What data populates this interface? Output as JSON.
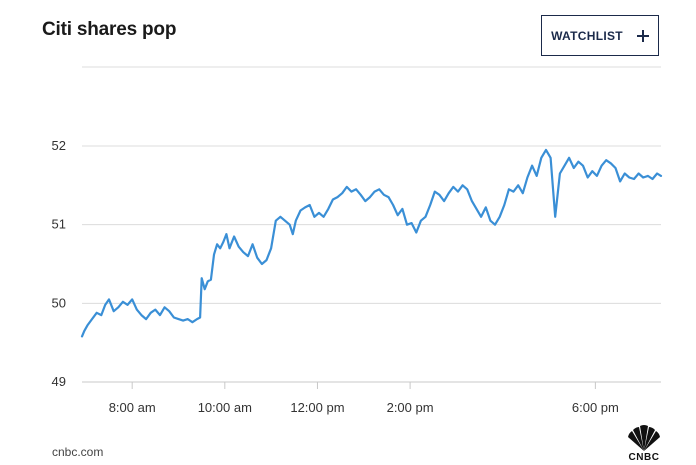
{
  "header": {
    "title": "Citi shares pop",
    "watchlist_label": "WATCHLIST",
    "watchlist_icon": "plus-icon"
  },
  "footer": {
    "source": "cnbc.com",
    "logo_text": "CNBC",
    "logo_icon": "peacock-icon"
  },
  "colors": {
    "line": "#3a8fd6",
    "grid": "#dcdcdc",
    "axis_text": "#333333",
    "button_border": "#1b2a4a"
  },
  "chart_data": {
    "type": "line",
    "title": "Citi shares pop",
    "xlabel": "",
    "ylabel": "",
    "ylim": [
      49,
      52
    ],
    "xlim": [
      "6:55 am",
      "7:25 pm"
    ],
    "yticks": [
      "49",
      "50",
      "51",
      "52"
    ],
    "xticks": [
      "8:00 am",
      "10:00 am",
      "12:00 pm",
      "2:00 pm",
      "6:00 pm"
    ],
    "grid": true,
    "series": [
      {
        "values": [
          [
            "6:55 am",
            49.58
          ],
          [
            "6:58 am",
            49.65
          ],
          [
            "7:02 am",
            49.72
          ],
          [
            "7:08 am",
            49.8
          ],
          [
            "7:14 am",
            49.88
          ],
          [
            "7:20 am",
            49.85
          ],
          [
            "7:25 am",
            49.98
          ],
          [
            "7:30 am",
            50.05
          ],
          [
            "7:36 am",
            49.9
          ],
          [
            "7:42 am",
            49.95
          ],
          [
            "7:48 am",
            50.02
          ],
          [
            "7:54 am",
            49.98
          ],
          [
            "8:00 am",
            50.05
          ],
          [
            "8:06 am",
            49.92
          ],
          [
            "8:12 am",
            49.85
          ],
          [
            "8:18 am",
            49.8
          ],
          [
            "8:24 am",
            49.88
          ],
          [
            "8:30 am",
            49.92
          ],
          [
            "8:36 am",
            49.85
          ],
          [
            "8:42 am",
            49.95
          ],
          [
            "8:48 am",
            49.9
          ],
          [
            "8:54 am",
            49.82
          ],
          [
            "9:00 am",
            49.8
          ],
          [
            "9:06 am",
            49.78
          ],
          [
            "9:12 am",
            49.8
          ],
          [
            "9:18 am",
            49.76
          ],
          [
            "9:24 am",
            49.8
          ],
          [
            "9:28 am",
            49.82
          ],
          [
            "9:30 am",
            50.32
          ],
          [
            "9:34 am",
            50.18
          ],
          [
            "9:38 am",
            50.28
          ],
          [
            "9:42 am",
            50.3
          ],
          [
            "9:46 am",
            50.62
          ],
          [
            "9:50 am",
            50.75
          ],
          [
            "9:54 am",
            50.7
          ],
          [
            "9:58 am",
            50.78
          ],
          [
            "10:02 am",
            50.88
          ],
          [
            "10:06 am",
            50.7
          ],
          [
            "10:12 am",
            50.85
          ],
          [
            "10:18 am",
            50.72
          ],
          [
            "10:24 am",
            50.65
          ],
          [
            "10:30 am",
            50.6
          ],
          [
            "10:36 am",
            50.75
          ],
          [
            "10:42 am",
            50.58
          ],
          [
            "10:48 am",
            50.5
          ],
          [
            "10:54 am",
            50.55
          ],
          [
            "11:00 am",
            50.7
          ],
          [
            "11:06 am",
            51.05
          ],
          [
            "11:12 am",
            51.1
          ],
          [
            "11:18 am",
            51.05
          ],
          [
            "11:24 am",
            51.0
          ],
          [
            "11:28 am",
            50.88
          ],
          [
            "11:32 am",
            51.05
          ],
          [
            "11:38 am",
            51.18
          ],
          [
            "11:44 am",
            51.22
          ],
          [
            "11:50 am",
            51.25
          ],
          [
            "11:56 am",
            51.1
          ],
          [
            "12:02 pm",
            51.15
          ],
          [
            "12:08 pm",
            51.1
          ],
          [
            "12:14 pm",
            51.2
          ],
          [
            "12:20 pm",
            51.32
          ],
          [
            "12:26 pm",
            51.35
          ],
          [
            "12:32 pm",
            51.4
          ],
          [
            "12:38 pm",
            51.48
          ],
          [
            "12:44 pm",
            51.42
          ],
          [
            "12:50 pm",
            51.45
          ],
          [
            "12:56 pm",
            51.38
          ],
          [
            "1:02 pm",
            51.3
          ],
          [
            "1:08 pm",
            51.35
          ],
          [
            "1:14 pm",
            51.42
          ],
          [
            "1:20 pm",
            51.45
          ],
          [
            "1:26 pm",
            51.38
          ],
          [
            "1:32 pm",
            51.35
          ],
          [
            "1:38 pm",
            51.25
          ],
          [
            "1:44 pm",
            51.12
          ],
          [
            "1:50 pm",
            51.2
          ],
          [
            "1:56 pm",
            51.0
          ],
          [
            "2:02 pm",
            51.02
          ],
          [
            "2:08 pm",
            50.9
          ],
          [
            "2:14 pm",
            51.05
          ],
          [
            "2:20 pm",
            51.1
          ],
          [
            "2:26 pm",
            51.25
          ],
          [
            "2:32 pm",
            51.42
          ],
          [
            "2:38 pm",
            51.38
          ],
          [
            "2:44 pm",
            51.3
          ],
          [
            "2:50 pm",
            51.4
          ],
          [
            "2:56 pm",
            51.48
          ],
          [
            "3:02 pm",
            51.42
          ],
          [
            "3:08 pm",
            51.5
          ],
          [
            "3:14 pm",
            51.45
          ],
          [
            "3:20 pm",
            51.3
          ],
          [
            "3:26 pm",
            51.2
          ],
          [
            "3:32 pm",
            51.1
          ],
          [
            "3:38 pm",
            51.22
          ],
          [
            "3:44 pm",
            51.05
          ],
          [
            "3:50 pm",
            51.0
          ],
          [
            "3:56 pm",
            51.1
          ],
          [
            "4:02 pm",
            51.25
          ],
          [
            "4:08 pm",
            51.45
          ],
          [
            "4:14 pm",
            51.42
          ],
          [
            "4:20 pm",
            51.5
          ],
          [
            "4:26 pm",
            51.4
          ],
          [
            "4:32 pm",
            51.6
          ],
          [
            "4:38 pm",
            51.75
          ],
          [
            "4:44 pm",
            51.62
          ],
          [
            "4:50 pm",
            51.85
          ],
          [
            "4:56 pm",
            51.95
          ],
          [
            "5:02 pm",
            51.85
          ],
          [
            "5:08 pm",
            51.1
          ],
          [
            "5:14 pm",
            51.65
          ],
          [
            "5:20 pm",
            51.75
          ],
          [
            "5:26 pm",
            51.85
          ],
          [
            "5:32 pm",
            51.72
          ],
          [
            "5:38 pm",
            51.8
          ],
          [
            "5:44 pm",
            51.75
          ],
          [
            "5:50 pm",
            51.6
          ],
          [
            "5:56 pm",
            51.68
          ],
          [
            "6:02 pm",
            51.62
          ],
          [
            "6:08 pm",
            51.75
          ],
          [
            "6:14 pm",
            51.82
          ],
          [
            "6:20 pm",
            51.78
          ],
          [
            "6:26 pm",
            51.72
          ],
          [
            "6:32 pm",
            51.55
          ],
          [
            "6:38 pm",
            51.65
          ],
          [
            "6:44 pm",
            51.6
          ],
          [
            "6:50 pm",
            51.58
          ],
          [
            "6:56 pm",
            51.65
          ],
          [
            "7:02 pm",
            51.6
          ],
          [
            "7:08 pm",
            51.62
          ],
          [
            "7:14 pm",
            51.58
          ],
          [
            "7:20 pm",
            51.65
          ],
          [
            "7:25 pm",
            51.62
          ]
        ]
      }
    ]
  }
}
